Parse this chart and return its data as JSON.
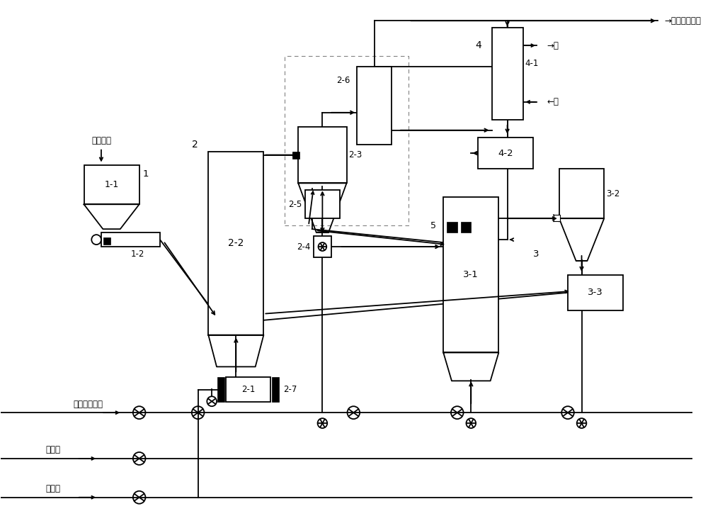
{
  "bg_color": "#ffffff",
  "lc": "#000000",
  "lw": 1.3,
  "fig_w": 10.0,
  "fig_h": 7.28,
  "xlim": [
    0,
    100
  ],
  "ylim": [
    0,
    72.8
  ],
  "labels": {
    "han_ti": "含钛粉体",
    "xi_xing": "惰性流化气体",
    "dan_yuan": "氮源气",
    "tan_yuan": "碳源气",
    "wei_qi": "→尾气处理回收",
    "shui_out": "→水",
    "shui_in": "←水",
    "n1": "1",
    "n11": "1-1",
    "n12": "1-2",
    "n2": "2",
    "n21": "2-1",
    "n22": "2-2",
    "n23": "2-3",
    "n24": "2-4",
    "n25": "2-5",
    "n26": "2-6",
    "n27": "2-7",
    "n3": "3",
    "n31": "3-1",
    "n32": "3-2",
    "n33": "3-3",
    "n4": "4",
    "n41": "4-1",
    "n42": "4-2",
    "n5": "5"
  }
}
